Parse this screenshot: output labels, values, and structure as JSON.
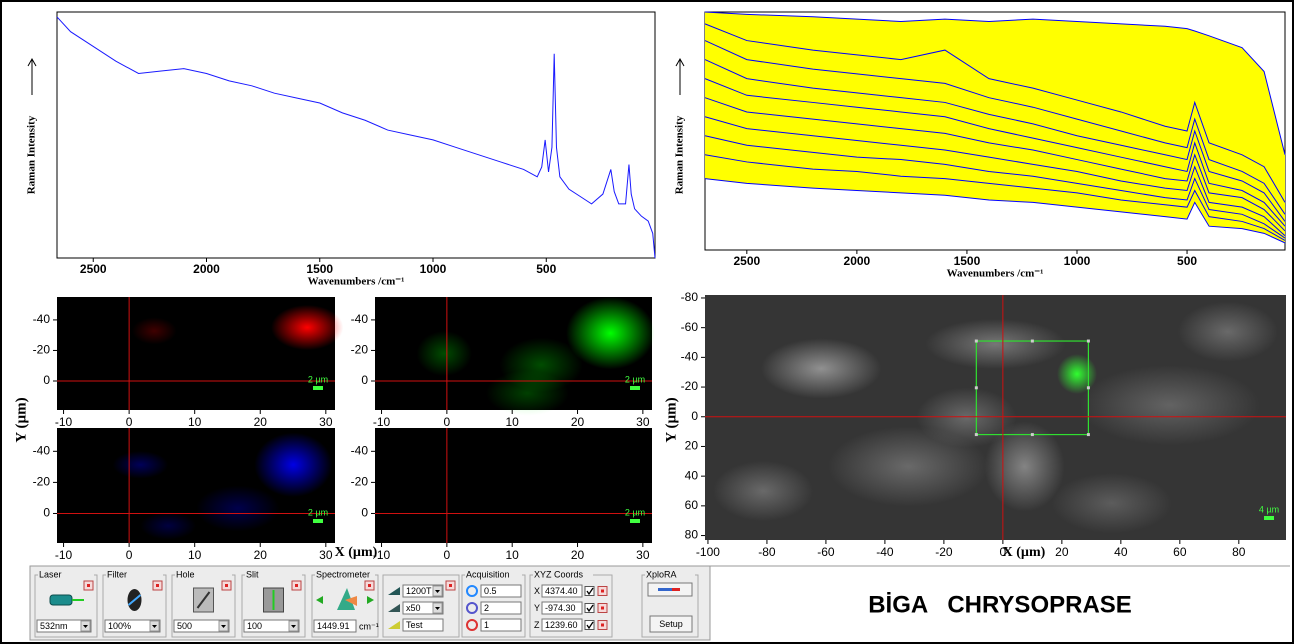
{
  "chart_data": [
    {
      "type": "line",
      "xlabel": "Wavenumbers /cm⁻¹",
      "ylabel": "Raman Intensity",
      "xlim": [
        2660,
        20
      ],
      "ylim": [
        0,
        100
      ],
      "xticks": [
        2500,
        2000,
        1500,
        1000,
        500
      ],
      "color": "#1a1aff",
      "x": [
        2660,
        2600,
        2500,
        2400,
        2300,
        2200,
        2100,
        2000,
        1900,
        1800,
        1700,
        1600,
        1500,
        1400,
        1300,
        1200,
        1100,
        1000,
        900,
        800,
        700,
        600,
        540,
        520,
        505,
        490,
        475,
        465,
        455,
        440,
        400,
        350,
        300,
        250,
        215,
        200,
        180,
        150,
        135,
        125,
        110,
        80,
        50,
        30,
        20
      ],
      "values": [
        98,
        92,
        86,
        80,
        75,
        76,
        77,
        75,
        72,
        70,
        67,
        65,
        63,
        59,
        56,
        52,
        50,
        48,
        45,
        42,
        39,
        36,
        33,
        37,
        48,
        35,
        45,
        83,
        45,
        33,
        28,
        25,
        22,
        26,
        36,
        27,
        22,
        22,
        38,
        26,
        20,
        17,
        15,
        10,
        0
      ]
    },
    {
      "type": "line",
      "xlabel": "Wavenumbers /cm⁻¹",
      "ylabel": "Raman Intensity",
      "xlim": [
        2690,
        55
      ],
      "ylim": [
        0,
        100
      ],
      "xticks": [
        2500,
        2000,
        1500,
        1000,
        500
      ],
      "area_color": "#ffff00",
      "x": [
        2690,
        2500,
        2200,
        2000,
        1800,
        1600,
        1400,
        1200,
        1000,
        800,
        600,
        500,
        465,
        400,
        250,
        150,
        55
      ],
      "series": [
        {
          "color": "#0000ff",
          "values": [
            100,
            99,
            98,
            97,
            96,
            97,
            96,
            97,
            96,
            95,
            94,
            93,
            92,
            90,
            85,
            75,
            40
          ]
        },
        {
          "color": "#0000ff",
          "values": [
            95,
            88,
            84,
            82,
            80,
            84,
            72,
            68,
            63,
            58,
            52,
            50,
            62,
            45,
            40,
            35,
            20
          ]
        },
        {
          "color": "#0000ff",
          "values": [
            88,
            80,
            76,
            74,
            72,
            70,
            64,
            60,
            55,
            50,
            45,
            43,
            55,
            38,
            33,
            28,
            15
          ]
        },
        {
          "color": "#0000ff",
          "values": [
            80,
            72,
            68,
            66,
            64,
            62,
            57,
            53,
            48,
            44,
            40,
            38,
            50,
            33,
            29,
            24,
            12
          ]
        },
        {
          "color": "#0000ff",
          "values": [
            72,
            65,
            62,
            60,
            58,
            56,
            51,
            47,
            43,
            39,
            35,
            33,
            45,
            28,
            25,
            20,
            10
          ]
        },
        {
          "color": "#0000ff",
          "values": [
            64,
            58,
            55,
            53,
            51,
            49,
            45,
            42,
            38,
            34,
            30,
            29,
            40,
            24,
            22,
            17,
            8
          ]
        },
        {
          "color": "#0000ff",
          "values": [
            56,
            51,
            48,
            46,
            44,
            42,
            39,
            36,
            33,
            29,
            26,
            25,
            35,
            20,
            18,
            14,
            6
          ]
        },
        {
          "color": "#0000ff",
          "values": [
            48,
            44,
            41,
            39,
            38,
            36,
            33,
            31,
            28,
            25,
            22,
            21,
            30,
            17,
            15,
            11,
            5
          ]
        },
        {
          "color": "#0000ff",
          "values": [
            40,
            37,
            34,
            33,
            31,
            30,
            28,
            26,
            24,
            21,
            19,
            18,
            25,
            14,
            12,
            9,
            4
          ]
        },
        {
          "color": "#0000ff",
          "values": [
            30,
            28,
            26,
            25,
            24,
            23,
            21,
            20,
            18,
            16,
            14,
            13,
            20,
            10,
            9,
            7,
            3
          ]
        }
      ]
    },
    {
      "type": "heatmap",
      "color": "#ff0000",
      "xlim": [
        -11,
        31.4
      ],
      "ylim": [
        19,
        -55
      ],
      "xticks": [
        -10,
        0,
        10,
        20,
        30
      ],
      "yticks": [
        -40,
        -20,
        0
      ],
      "crosshair": {
        "x": 0,
        "y": 0
      },
      "scale_bar": "2 µm"
    },
    {
      "type": "heatmap",
      "color": "#00ff00",
      "xlim": [
        -11,
        31.4
      ],
      "ylim": [
        19,
        -55
      ],
      "xticks": [
        -10,
        0,
        10,
        20,
        30
      ],
      "yticks": [
        -40,
        -20,
        0
      ],
      "crosshair": {
        "x": 0,
        "y": 0
      },
      "scale_bar": "2 µm"
    },
    {
      "type": "heatmap",
      "color": "#0000ff",
      "xlim": [
        -11,
        31.4
      ],
      "ylim": [
        19,
        -55
      ],
      "xticks": [
        -10,
        0,
        10,
        20,
        30
      ],
      "yticks": [
        -40,
        -20,
        0
      ],
      "crosshair": {
        "x": 0,
        "y": 0
      },
      "scale_bar": "2 µm"
    },
    {
      "type": "heatmap",
      "color": "#000000",
      "xlim": [
        -11,
        31.4
      ],
      "ylim": [
        19,
        -55
      ],
      "xticks": [
        -10,
        0,
        10,
        20,
        30
      ],
      "yticks": [
        -40,
        -20,
        0
      ],
      "crosshair": {
        "x": 0,
        "y": 0
      },
      "scale_bar": "2 µm"
    },
    {
      "type": "image",
      "xlabel": "X (µm)",
      "ylabel": "Y (µm)",
      "xlim": [
        -101,
        96
      ],
      "ylim": [
        83,
        -82
      ],
      "xticks": [
        -100,
        -80,
        -60,
        -40,
        -20,
        0,
        20,
        40,
        60,
        80
      ],
      "yticks": [
        -80,
        -60,
        -40,
        -20,
        0,
        20,
        40,
        60,
        80
      ],
      "crosshair": {
        "x": 0,
        "y": 0
      },
      "scan_area": {
        "x": [
          -9,
          29
        ],
        "y": [
          -51,
          12
        ]
      },
      "scale_bar": "4 µm"
    }
  ],
  "heatmap_axes": {
    "xlabel": "X (µm)",
    "ylabel": "Y (µm)"
  },
  "control_panel": {
    "groups": [
      {
        "label": "Laser",
        "value": "532nm"
      },
      {
        "label": "Filter",
        "value": "100%"
      },
      {
        "label": "Hole",
        "value": "500"
      },
      {
        "label": "Slit",
        "value": "100"
      },
      {
        "label": "Spectrometer",
        "value": "1449.91",
        "unit": "cm⁻¹"
      }
    ],
    "optics": [
      "1200T",
      "x50",
      "Test"
    ],
    "acquisition": {
      "label": "Acquisition",
      "values": [
        "0.5",
        "2",
        "1"
      ]
    },
    "xyz": {
      "label": "XYZ Coords",
      "axes": [
        "X",
        "Y",
        "Z"
      ],
      "values": [
        "4374.40",
        "-974.30",
        "1239.60"
      ]
    },
    "instrument": {
      "label": "XploRA",
      "button": "Setup"
    }
  },
  "title": "BİGA   CHRYSOPRASE"
}
